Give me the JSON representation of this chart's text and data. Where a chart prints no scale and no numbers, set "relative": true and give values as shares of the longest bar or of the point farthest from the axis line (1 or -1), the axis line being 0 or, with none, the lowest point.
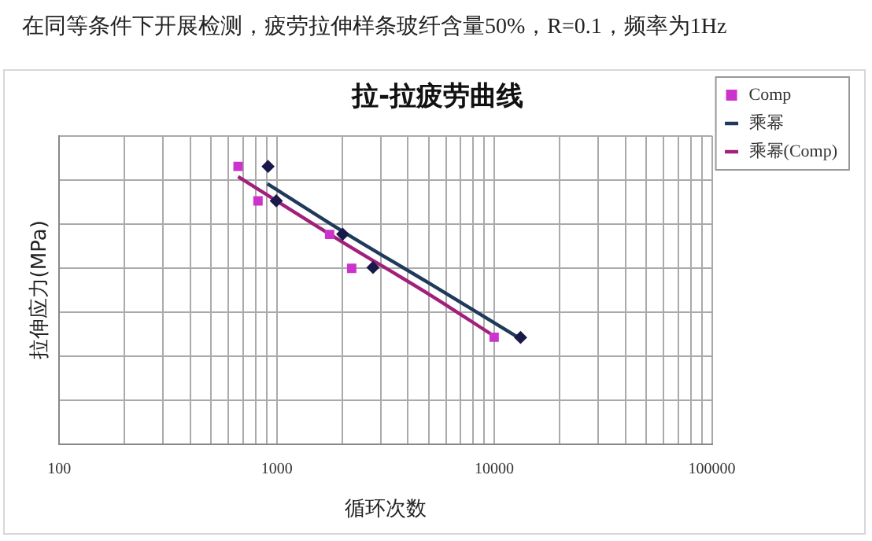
{
  "chart_data": {
    "type": "scatter",
    "title": "拉-拉疲劳曲线",
    "annotations": [
      "在同等条件下开展检测，疲劳拉伸样条玻纤含量50%，R=0.1，频率为1Hz"
    ],
    "xlabel": "循环次数",
    "ylabel": "拉伸应力(MPa)",
    "log": "x",
    "xlim": [
      100,
      100000
    ],
    "xticks": [
      100,
      1000,
      10000,
      100000
    ],
    "relative": true,
    "tick_labels": "x",
    "grid": true,
    "legend": "right",
    "series": [
      {
        "marker": "diamond",
        "color": "#1a1a4a",
        "x": [
          912,
          995,
          2010,
          2770,
          13200
        ],
        "values": [
          1,
          0.876,
          0.756,
          0.636,
          0.384
        ]
      },
      {
        "name": "Comp",
        "marker": "square",
        "color": "#cc33cc",
        "x": [
          664,
          820,
          1750,
          2210,
          9980
        ],
        "values": [
          1,
          0.876,
          0.755,
          0.633,
          0.385
        ]
      },
      {
        "name": "乘幂",
        "type": "line",
        "marker": "none",
        "color": "#1f3a5a",
        "x": [
          905,
          2010,
          5000,
          12700
        ],
        "values": [
          0.938,
          0.766,
          0.58,
          0.387
        ]
      },
      {
        "name": "乘幂(Comp)",
        "type": "line",
        "marker": "none",
        "color": "#a0207a",
        "x": [
          664,
          2010,
          5000,
          9980
        ],
        "values": [
          0.963,
          0.727,
          0.54,
          0.389
        ]
      }
    ]
  }
}
